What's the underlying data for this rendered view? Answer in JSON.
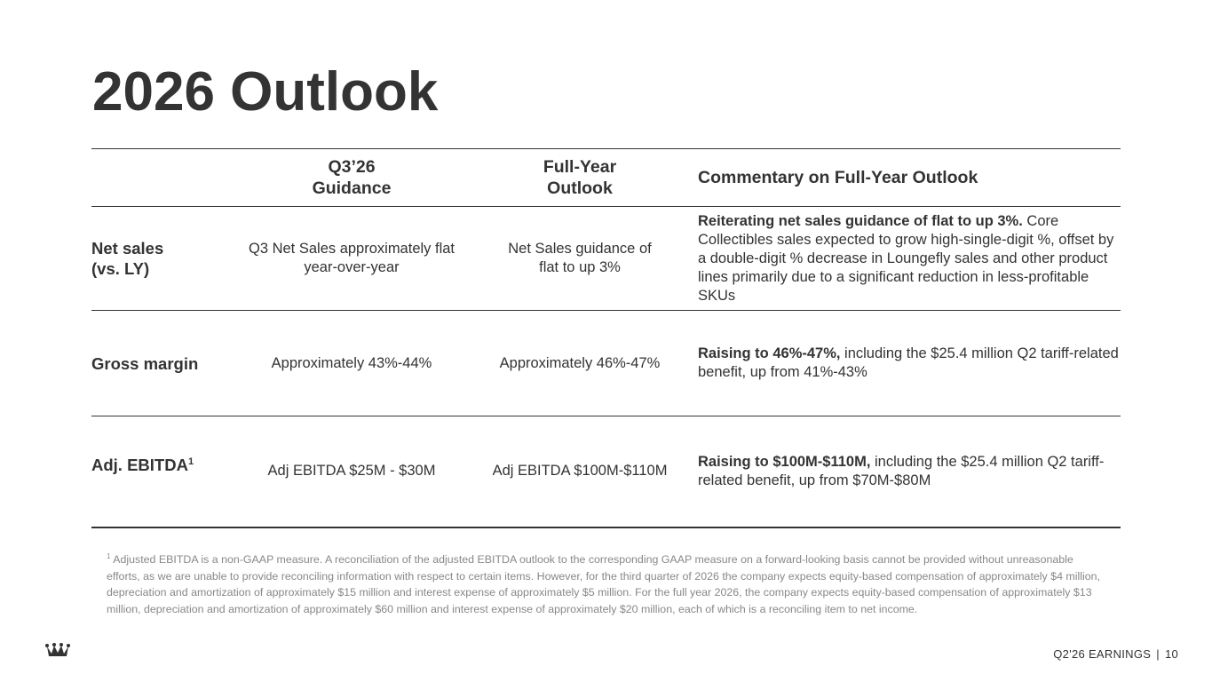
{
  "title": "2026 Outlook",
  "table": {
    "headers": [
      "Q3’26\nGuidance",
      "Full-Year\nOutlook",
      "Commentary on Full-Year Outlook"
    ],
    "rows": [
      {
        "label": "Net sales\n(vs. LY)",
        "q3": "Q3 Net Sales approximately flat\nyear-over-year",
        "fy": "Net Sales guidance of\nflat to up 3%",
        "bold": "Reiterating net sales guidance of flat to up 3%.",
        "text": " Core Collectibles sales expected to grow high-single-digit %, offset by a double-digit % decrease in Loungefly sales and other product lines primarily due to a significant reduction in less-profitable SKUs"
      },
      {
        "label": "Gross margin",
        "q3": "Approximately 43%-44%",
        "fy": "Approximately 46%-47%",
        "bold": "Raising to 46%-47%,",
        "text": " including the $25.4 million Q2 tariff-related benefit, up from 41%-43%"
      },
      {
        "label": "Adj. EBITDA",
        "note": "1",
        "q3": "Adj EBITDA $25M - $30M",
        "fy": "Adj EBITDA $100M-$110M",
        "bold": "Raising to $100M-$110M,",
        "text": " including the $25.4 million Q2 tariff-related benefit, up from $70M-$80M"
      }
    ]
  },
  "footnote": {
    "mark": "1",
    "text": " Adjusted EBITDA is a non-GAAP measure. A reconciliation of the adjusted EBITDA outlook to the corresponding GAAP measure on a forward-looking basis cannot be provided without unreasonable efforts, as we are unable to provide reconciling information with respect to certain items. However, for the third quarter of 2026 the company expects equity-based compensation of approximately $4 million, depreciation and amortization of approximately $15 million and interest expense of approximately $5 million. For the full year 2026, the company expects equity-based compensation of approximately $13 million, depreciation and amortization of approximately $60 million and interest expense of approximately $20 million, each of which is a reconciling item to net income."
  },
  "footer": {
    "label": "Q2'26 EARNINGS",
    "page": "10"
  }
}
